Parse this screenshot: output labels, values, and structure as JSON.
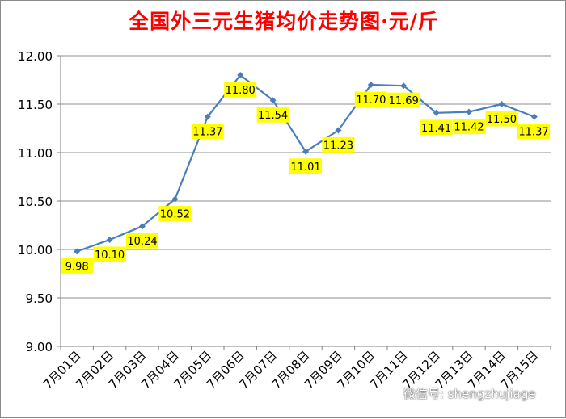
{
  "chart_data": {
    "type": "line",
    "title": "全国外三元生猪均价走势图·元/斤",
    "categories": [
      "7月01日",
      "7月02日",
      "7月03日",
      "7月04日",
      "7月05日",
      "7月06日",
      "7月07日",
      "7月08日",
      "7月09日",
      "7月10日",
      "7月11日",
      "7月12日",
      "7月13日",
      "7月14日",
      "7月15日"
    ],
    "values": [
      9.98,
      10.1,
      10.24,
      10.52,
      11.37,
      11.8,
      11.54,
      11.01,
      11.23,
      11.7,
      11.69,
      11.41,
      11.42,
      11.5,
      11.37
    ],
    "data_labels": [
      "9.98",
      "10.10",
      "10.24",
      "10.52",
      "11.37",
      "11.80",
      "11.54",
      "11.01",
      "11.23",
      "11.70",
      "11.69",
      "11.41",
      "11.42",
      "11.50",
      "11.37"
    ],
    "ylim": [
      9.0,
      12.0
    ],
    "yticks": [
      "9.00",
      "9.50",
      "10.00",
      "10.50",
      "11.00",
      "11.50",
      "12.00"
    ],
    "grid": true,
    "legend": "none",
    "colors": {
      "line": "#4a7ebb",
      "label_bg": "#ffff00",
      "title": "#ff0000",
      "grid": "#8c8c8c"
    }
  },
  "watermark": "微信号: shengzhujiage"
}
